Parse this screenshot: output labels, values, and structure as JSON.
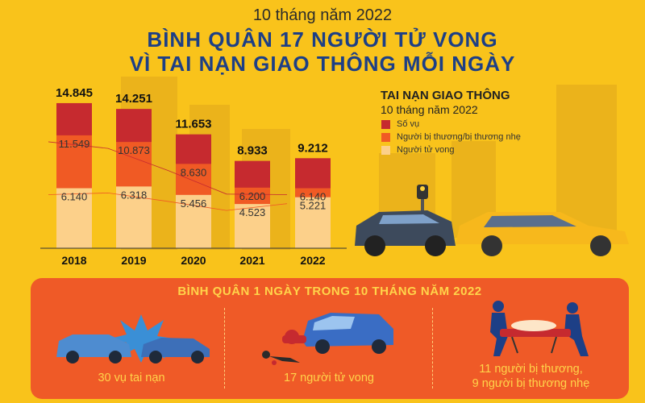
{
  "header": {
    "subtitle": "10 tháng năm 2022",
    "title_line1": "BÌNH QUÂN 17 NGƯỜI TỬ VONG",
    "title_line2": "VÌ TAI NẠN GIAO THÔNG MỖI NGÀY"
  },
  "legend": {
    "title": "TAI NẠN GIAO THÔNG",
    "subtitle": "10 tháng năm 2022",
    "items": [
      "Số vụ",
      "Người bị thương/bị thương nhẹ",
      "Người tử vong"
    ]
  },
  "colors": {
    "background": "#f9c31b",
    "so_vu": "#c62a2f",
    "bi_thuong": "#f05a24",
    "tu_vong": "#fcd08a",
    "panel": "#ef5a27",
    "title_blue": "#1d3f86"
  },
  "chart_data": {
    "type": "bar",
    "categories": [
      "2018",
      "2019",
      "2020",
      "2021",
      "2022"
    ],
    "series": [
      {
        "name": "Số vụ",
        "values": [
          14845,
          14251,
          11653,
          8933,
          9212
        ],
        "labels": [
          "14.845",
          "14.251",
          "11.653",
          "8.933",
          "9.212"
        ]
      },
      {
        "name": "Người bị thương/bị thương nhẹ",
        "values": [
          11549,
          10873,
          8630,
          6200,
          6140
        ],
        "labels": [
          "11.549",
          "10.873",
          "8.630",
          "6.200",
          "6.140"
        ]
      },
      {
        "name": "Người tử vong",
        "values": [
          6140,
          6318,
          5456,
          4523,
          5221
        ],
        "labels": [
          "6.140",
          "6.318",
          "5.456",
          "4.523",
          "5.221"
        ]
      }
    ],
    "ylim": [
      0,
      15500
    ],
    "grid": false,
    "legend_position": "right"
  },
  "daily_average": {
    "title": "BÌNH QUÂN 1 NGÀY TRONG 10 THÁNG NĂM 2022",
    "items": [
      {
        "text": "30 vụ tai nạn",
        "icon": "car-crash-icon"
      },
      {
        "text": "17 người tử vong",
        "icon": "pedestrian-accident-icon"
      },
      {
        "text_line1": "11 người bị thương,",
        "text_line2": "9 người bị thương nhẹ",
        "icon": "injured-stretcher-icon"
      }
    ]
  }
}
